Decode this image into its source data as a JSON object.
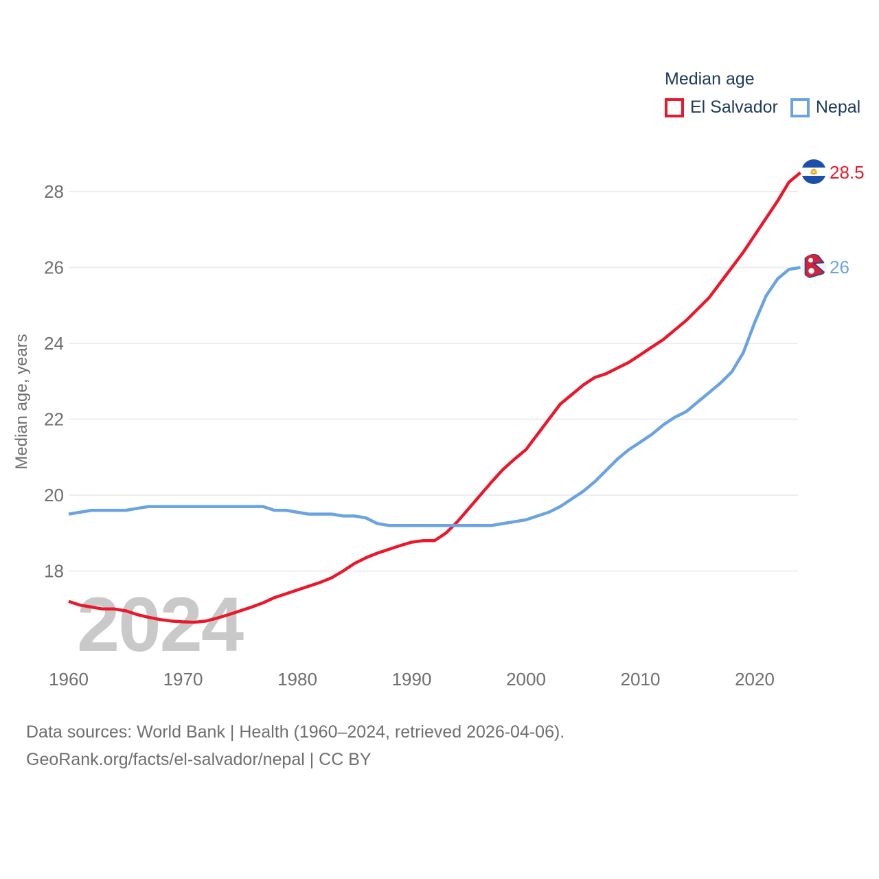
{
  "legend": {
    "title": "Median age",
    "items": [
      {
        "label": "El Salvador"
      },
      {
        "label": "Nepal"
      }
    ]
  },
  "colors": {
    "el_salvador": "#e8192c",
    "nepal": "#6aa3e0",
    "legend_text": "#1e3a5c",
    "axis_text": "#6e6e6e",
    "grid": "#ededed",
    "watermark": "#c9c9c9",
    "footer_text": "#6f6f6f"
  },
  "end_labels": {
    "el_salvador": "28.5",
    "nepal": "26"
  },
  "watermark": "2024",
  "y_axis_title": "Median age, years",
  "footer": {
    "line1": "Data sources: World Bank | Health (1960–2024, retrieved 2026-04-06).",
    "line2": "GeoRank.org/facts/el-salvador/nepal | CC BY"
  },
  "chart_data": {
    "type": "line",
    "title": "Median age",
    "xlabel": "",
    "ylabel": "Median age, years",
    "xlim": [
      1960,
      2024
    ],
    "ylim": [
      16.5,
      29
    ],
    "grid": "horizontal",
    "legend_position": "top-right",
    "yticks": [
      18,
      20,
      22,
      24,
      26,
      28
    ],
    "xticks": [
      1960,
      1970,
      1980,
      1990,
      2000,
      2010,
      2020
    ],
    "x": [
      1960,
      1961,
      1962,
      1963,
      1964,
      1965,
      1966,
      1967,
      1968,
      1969,
      1970,
      1971,
      1972,
      1973,
      1974,
      1975,
      1976,
      1977,
      1978,
      1979,
      1980,
      1981,
      1982,
      1983,
      1984,
      1985,
      1986,
      1987,
      1988,
      1989,
      1990,
      1991,
      1992,
      1993,
      1994,
      1995,
      1996,
      1997,
      1998,
      1999,
      2000,
      2001,
      2002,
      2003,
      2004,
      2005,
      2006,
      2007,
      2008,
      2009,
      2010,
      2011,
      2012,
      2013,
      2014,
      2015,
      2016,
      2017,
      2018,
      2019,
      2020,
      2021,
      2022,
      2023,
      2024
    ],
    "series": [
      {
        "name": "El Salvador",
        "color": "#e8192c",
        "end_value": 28.5,
        "values": [
          17.2,
          17.1,
          17.05,
          17.0,
          17.0,
          16.95,
          16.85,
          16.78,
          16.72,
          16.68,
          16.66,
          16.65,
          16.68,
          16.76,
          16.85,
          16.95,
          17.05,
          17.16,
          17.3,
          17.4,
          17.5,
          17.6,
          17.7,
          17.82,
          18.0,
          18.2,
          18.35,
          18.47,
          18.57,
          18.67,
          18.76,
          18.8,
          18.8,
          19.0,
          19.3,
          19.65,
          20.0,
          20.35,
          20.68,
          20.95,
          21.2,
          21.6,
          22.0,
          22.4,
          22.65,
          22.9,
          23.1,
          23.2,
          23.35,
          23.5,
          23.7,
          23.9,
          24.1,
          24.35,
          24.6,
          24.9,
          25.2,
          25.6,
          26.0,
          26.4,
          26.85,
          27.3,
          27.75,
          28.25,
          28.5
        ]
      },
      {
        "name": "Nepal",
        "color": "#6aa3e0",
        "end_value": 26,
        "values": [
          19.5,
          19.55,
          19.6,
          19.6,
          19.6,
          19.6,
          19.65,
          19.7,
          19.7,
          19.7,
          19.7,
          19.7,
          19.7,
          19.7,
          19.7,
          19.7,
          19.7,
          19.7,
          19.6,
          19.6,
          19.55,
          19.5,
          19.5,
          19.5,
          19.45,
          19.45,
          19.4,
          19.25,
          19.2,
          19.2,
          19.2,
          19.2,
          19.2,
          19.2,
          19.2,
          19.2,
          19.2,
          19.2,
          19.25,
          19.3,
          19.35,
          19.45,
          19.55,
          19.7,
          19.9,
          20.1,
          20.35,
          20.65,
          20.95,
          21.2,
          21.4,
          21.6,
          21.85,
          22.05,
          22.2,
          22.45,
          22.7,
          22.95,
          23.25,
          23.75,
          24.55,
          25.25,
          25.7,
          25.95,
          26.0
        ]
      }
    ]
  }
}
